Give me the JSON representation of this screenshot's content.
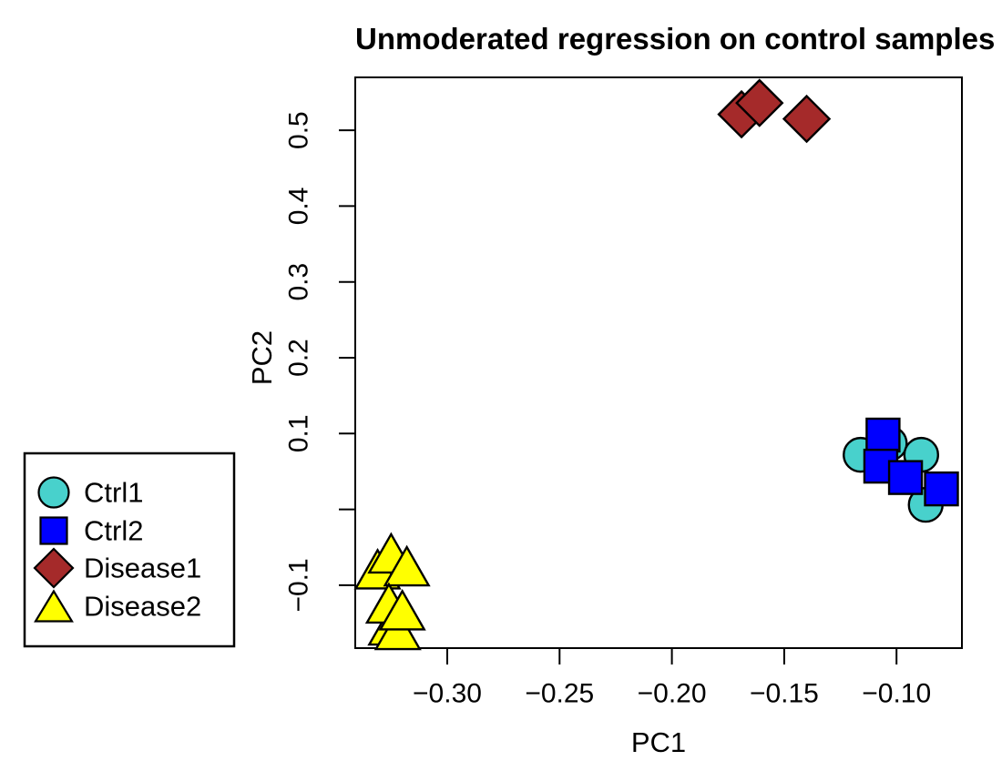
{
  "chart_data": {
    "type": "scatter",
    "title": "Unmoderated regression on control samples",
    "xlabel": "PC1",
    "ylabel": "PC2",
    "xlim": [
      -0.341,
      -0.07
    ],
    "ylim": [
      -0.183,
      0.571
    ],
    "grid": false,
    "legend_position": "outside-left-middle",
    "x_ticks": [
      -0.3,
      -0.25,
      -0.2,
      -0.15,
      -0.1
    ],
    "x_tick_labels": [
      "−0.30",
      "−0.25",
      "−0.20",
      "−0.15",
      "−0.10"
    ],
    "y_ticks": [
      0.5,
      0.4,
      0.3,
      0.2,
      0.1,
      0.0,
      -0.1
    ],
    "y_tick_labels": [
      "0.5",
      "0.4",
      "0.3",
      "0.2",
      "0.1",
      "",
      "−0.1"
    ],
    "series": [
      {
        "name": "Ctrl1",
        "marker": "circle",
        "fill": "#48D1CC",
        "stroke": "#000000",
        "points": [
          [
            -0.116,
            0.072
          ],
          [
            -0.103,
            0.087
          ],
          [
            -0.089,
            0.072
          ],
          [
            -0.087,
            0.006
          ]
        ]
      },
      {
        "name": "Ctrl2",
        "marker": "square",
        "fill": "#0000FF",
        "stroke": "#000000",
        "points": [
          [
            -0.106,
            0.098
          ],
          [
            -0.107,
            0.057
          ],
          [
            -0.096,
            0.042
          ],
          [
            -0.08,
            0.027
          ]
        ]
      },
      {
        "name": "Disease1",
        "marker": "diamond",
        "fill": "#A52A2A",
        "stroke": "#000000",
        "points": [
          [
            -0.169,
            0.521
          ],
          [
            -0.161,
            0.536
          ],
          [
            -0.14,
            0.515
          ]
        ]
      },
      {
        "name": "Disease2",
        "marker": "triangle-up",
        "fill": "#FFFF00",
        "stroke": "#000000",
        "points": [
          [
            -0.325,
            -0.153
          ],
          [
            -0.322,
            -0.159
          ],
          [
            -0.331,
            -0.079
          ],
          [
            -0.325,
            -0.058
          ],
          [
            -0.318,
            -0.075
          ],
          [
            -0.326,
            -0.124
          ],
          [
            -0.32,
            -0.133
          ]
        ]
      }
    ]
  }
}
